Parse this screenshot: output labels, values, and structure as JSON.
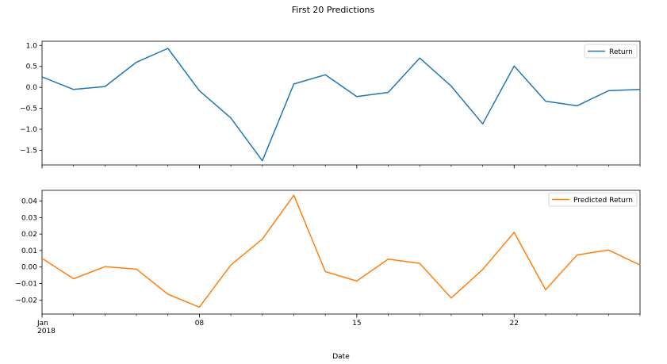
{
  "chart_data": {
    "type": "line",
    "title": "First 20 Predictions",
    "xlabel": "Date",
    "x": [
      "2018-01-01",
      "2018-01-02",
      "2018-01-03",
      "2018-01-04",
      "2018-01-05",
      "2018-01-06",
      "2018-01-07",
      "2018-01-08",
      "2018-01-09",
      "2018-01-10",
      "2018-01-11",
      "2018-01-12",
      "2018-01-13",
      "2018-01-14",
      "2018-01-15",
      "2018-01-16",
      "2018-01-17",
      "2018-01-18",
      "2018-01-19",
      "2018-01-20"
    ],
    "x_tick_labels": [
      {
        "major": "Jan",
        "minor": "2018"
      },
      {
        "major": "08",
        "minor": ""
      },
      {
        "major": "15",
        "minor": ""
      },
      {
        "major": "22",
        "minor": ""
      }
    ],
    "panels": [
      {
        "series": [
          {
            "name": "Return",
            "color": "#1f77b4",
            "values": [
              0.25,
              -0.05,
              0.02,
              0.6,
              0.93,
              -0.08,
              -0.73,
              -1.75,
              0.08,
              0.3,
              -0.22,
              -0.12,
              0.7,
              0.03,
              -0.87,
              0.51,
              -0.33,
              -0.44,
              -0.08,
              -0.05
            ]
          }
        ],
        "ylim": [
          -1.85,
          1.1
        ],
        "yticks": [
          1.0,
          0.5,
          0.0,
          -0.5,
          -1.0,
          -1.5
        ],
        "ytick_labels": [
          "1.0",
          "0.5",
          "0.0",
          "−0.5",
          "−1.0",
          "−1.5"
        ],
        "legend": "top-right"
      },
      {
        "series": [
          {
            "name": "Predicted Return",
            "color": "#ff7f0e",
            "values": [
              0.0053,
              -0.0071,
              0.0002,
              -0.0013,
              -0.0165,
              -0.0243,
              0.0012,
              0.017,
              0.0435,
              -0.0028,
              -0.0085,
              0.0048,
              0.0022,
              -0.0188,
              -0.0015,
              0.021,
              -0.0138,
              0.0073,
              0.0103,
              0.0012
            ]
          }
        ],
        "ylim": [
          -0.0285,
          0.0465
        ],
        "yticks": [
          0.04,
          0.03,
          0.02,
          0.01,
          0.0,
          -0.01,
          -0.02
        ],
        "ytick_labels": [
          "0.04",
          "0.03",
          "0.02",
          "0.01",
          "0.00",
          "−0.01",
          "−0.02"
        ],
        "legend": "top-right"
      }
    ]
  }
}
